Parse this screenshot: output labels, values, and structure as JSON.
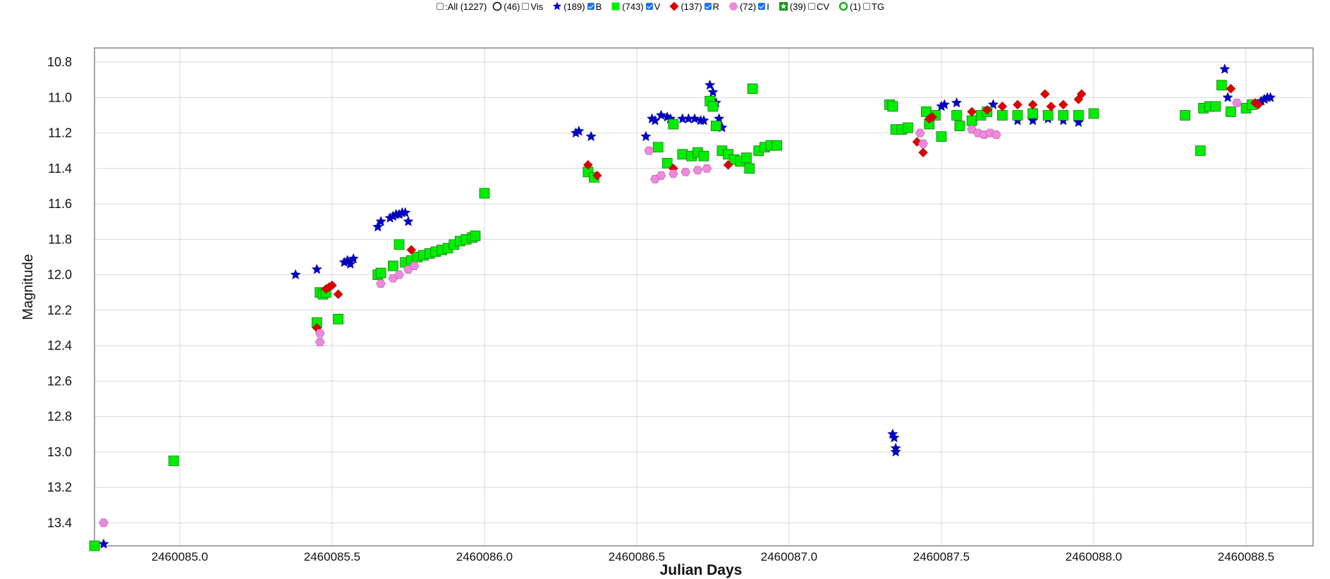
{
  "legend": {
    "all": {
      "label": ":All (1227)",
      "checked": false
    },
    "groups": [
      {
        "count": "(46)",
        "band": "Vis",
        "checked": false,
        "symbol": "open-circle",
        "color": "#000000"
      },
      {
        "count": "(189)",
        "band": "B",
        "checked": true,
        "symbol": "star",
        "color": "#0000cc"
      },
      {
        "count": "(743)",
        "band": "V",
        "checked": true,
        "symbol": "square",
        "color": "#00ee00"
      },
      {
        "count": "(137)",
        "band": "R",
        "checked": true,
        "symbol": "diamond",
        "color": "#dd0000"
      },
      {
        "count": "(72)",
        "band": "I",
        "checked": true,
        "symbol": "hexagon",
        "color": "#ee88dd"
      },
      {
        "count": "(39)",
        "band": "CV",
        "checked": false,
        "symbol": "square-asterisk",
        "color": "#119911"
      },
      {
        "count": "(1)",
        "band": "TG",
        "checked": false,
        "symbol": "open-ring",
        "color": "#22aa22"
      }
    ]
  },
  "chart_data": {
    "type": "scatter",
    "title": "",
    "xlabel": "Julian Days",
    "ylabel": "Magnitude",
    "xlim": [
      2460084.72,
      2460088.72
    ],
    "ylim": [
      13.53,
      10.72
    ],
    "y_inverted": true,
    "grid": true,
    "xticks": [
      2460085.0,
      2460085.5,
      2460086.0,
      2460086.5,
      2460087.0,
      2460087.5,
      2460088.0,
      2460088.5
    ],
    "xtick_labels": [
      "2460085.0",
      "2460085.5",
      "2460086.0",
      "2460086.5",
      "2460087.0",
      "2460087.5",
      "2460088.0",
      "2460088.5"
    ],
    "yticks": [
      10.8,
      11.0,
      11.2,
      11.4,
      11.6,
      11.8,
      12.0,
      12.2,
      12.4,
      12.6,
      12.8,
      13.0,
      13.2,
      13.4
    ],
    "ytick_labels": [
      "10.8",
      "11.0",
      "11.2",
      "11.4",
      "11.6",
      "11.8",
      "12.0",
      "12.2",
      "12.4",
      "12.6",
      "12.8",
      "13.0",
      "13.2",
      "13.4"
    ],
    "series": [
      {
        "name": "B",
        "marker": "star",
        "color": "#0000cc",
        "points": [
          [
            2460084.75,
            13.52
          ],
          [
            2460085.38,
            12.0
          ],
          [
            2460085.45,
            11.97
          ],
          [
            2460085.54,
            11.93
          ],
          [
            2460085.55,
            11.92
          ],
          [
            2460085.56,
            11.94
          ],
          [
            2460085.57,
            11.91
          ],
          [
            2460085.65,
            11.73
          ],
          [
            2460085.66,
            11.7
          ],
          [
            2460085.69,
            11.68
          ],
          [
            2460085.7,
            11.67
          ],
          [
            2460085.71,
            11.66
          ],
          [
            2460085.72,
            11.66
          ],
          [
            2460085.73,
            11.65
          ],
          [
            2460085.74,
            11.65
          ],
          [
            2460085.75,
            11.7
          ],
          [
            2460086.3,
            11.2
          ],
          [
            2460086.31,
            11.19
          ],
          [
            2460086.35,
            11.22
          ],
          [
            2460086.53,
            11.22
          ],
          [
            2460086.55,
            11.12
          ],
          [
            2460086.56,
            11.13
          ],
          [
            2460086.58,
            11.1
          ],
          [
            2460086.6,
            11.11
          ],
          [
            2460086.61,
            11.12
          ],
          [
            2460086.62,
            11.14
          ],
          [
            2460086.65,
            11.12
          ],
          [
            2460086.67,
            11.12
          ],
          [
            2460086.69,
            11.12
          ],
          [
            2460086.71,
            11.13
          ],
          [
            2460086.72,
            11.13
          ],
          [
            2460086.74,
            10.93
          ],
          [
            2460086.75,
            10.97
          ],
          [
            2460086.76,
            11.03
          ],
          [
            2460086.77,
            11.12
          ],
          [
            2460086.78,
            11.17
          ],
          [
            2460087.34,
            12.9
          ],
          [
            2460087.345,
            12.92
          ],
          [
            2460087.35,
            12.98
          ],
          [
            2460087.35,
            13.0
          ],
          [
            2460087.5,
            11.05
          ],
          [
            2460087.51,
            11.04
          ],
          [
            2460087.55,
            11.03
          ],
          [
            2460087.6,
            11.14
          ],
          [
            2460087.67,
            11.04
          ],
          [
            2460087.75,
            11.13
          ],
          [
            2460087.8,
            11.13
          ],
          [
            2460087.85,
            11.12
          ],
          [
            2460087.9,
            11.13
          ],
          [
            2460087.95,
            11.14
          ],
          [
            2460088.43,
            10.84
          ],
          [
            2460088.44,
            11.0
          ],
          [
            2460088.55,
            11.02
          ],
          [
            2460088.56,
            11.01
          ],
          [
            2460088.57,
            11.0
          ],
          [
            2460088.58,
            11.0
          ]
        ]
      },
      {
        "name": "V",
        "marker": "square",
        "color": "#00ee00",
        "points": [
          [
            2460084.72,
            13.53
          ],
          [
            2460084.98,
            13.05
          ],
          [
            2460085.45,
            12.27
          ],
          [
            2460085.46,
            12.1
          ],
          [
            2460085.47,
            12.11
          ],
          [
            2460085.48,
            12.1
          ],
          [
            2460085.52,
            12.25
          ],
          [
            2460085.65,
            12.0
          ],
          [
            2460085.66,
            11.99
          ],
          [
            2460085.7,
            11.95
          ],
          [
            2460085.72,
            11.83
          ],
          [
            2460085.74,
            11.93
          ],
          [
            2460085.76,
            11.92
          ],
          [
            2460085.78,
            11.9
          ],
          [
            2460085.8,
            11.89
          ],
          [
            2460085.82,
            11.88
          ],
          [
            2460085.84,
            11.87
          ],
          [
            2460085.86,
            11.86
          ],
          [
            2460085.88,
            11.85
          ],
          [
            2460085.9,
            11.83
          ],
          [
            2460085.92,
            11.81
          ],
          [
            2460085.94,
            11.8
          ],
          [
            2460085.96,
            11.79
          ],
          [
            2460085.97,
            11.78
          ],
          [
            2460086.0,
            11.54
          ],
          [
            2460086.34,
            11.42
          ],
          [
            2460086.36,
            11.45
          ],
          [
            2460086.57,
            11.28
          ],
          [
            2460086.6,
            11.37
          ],
          [
            2460086.62,
            11.15
          ],
          [
            2460086.65,
            11.32
          ],
          [
            2460086.68,
            11.33
          ],
          [
            2460086.7,
            11.31
          ],
          [
            2460086.72,
            11.33
          ],
          [
            2460086.74,
            11.02
          ],
          [
            2460086.75,
            11.05
          ],
          [
            2460086.76,
            11.16
          ],
          [
            2460086.78,
            11.3
          ],
          [
            2460086.8,
            11.32
          ],
          [
            2460086.82,
            11.35
          ],
          [
            2460086.84,
            11.36
          ],
          [
            2460086.86,
            11.34
          ],
          [
            2460086.87,
            11.4
          ],
          [
            2460086.88,
            10.95
          ],
          [
            2460086.9,
            11.3
          ],
          [
            2460086.92,
            11.28
          ],
          [
            2460086.94,
            11.27
          ],
          [
            2460086.96,
            11.27
          ],
          [
            2460087.33,
            11.04
          ],
          [
            2460087.34,
            11.05
          ],
          [
            2460087.35,
            11.18
          ],
          [
            2460087.37,
            11.18
          ],
          [
            2460087.39,
            11.17
          ],
          [
            2460087.45,
            11.08
          ],
          [
            2460087.46,
            11.15
          ],
          [
            2460087.48,
            11.1
          ],
          [
            2460087.5,
            11.22
          ],
          [
            2460087.55,
            11.1
          ],
          [
            2460087.56,
            11.16
          ],
          [
            2460087.6,
            11.13
          ],
          [
            2460087.63,
            11.1
          ],
          [
            2460087.65,
            11.08
          ],
          [
            2460087.7,
            11.1
          ],
          [
            2460087.75,
            11.1
          ],
          [
            2460087.8,
            11.09
          ],
          [
            2460087.85,
            11.1
          ],
          [
            2460087.9,
            11.1
          ],
          [
            2460087.95,
            11.1
          ],
          [
            2460088.0,
            11.09
          ],
          [
            2460088.3,
            11.1
          ],
          [
            2460088.35,
            11.3
          ],
          [
            2460088.36,
            11.06
          ],
          [
            2460088.38,
            11.05
          ],
          [
            2460088.4,
            11.05
          ],
          [
            2460088.42,
            10.93
          ],
          [
            2460088.45,
            11.08
          ],
          [
            2460088.5,
            11.06
          ],
          [
            2460088.52,
            11.04
          ]
        ]
      },
      {
        "name": "R",
        "marker": "diamond",
        "color": "#dd0000",
        "points": [
          [
            2460085.45,
            12.3
          ],
          [
            2460085.48,
            12.08
          ],
          [
            2460085.49,
            12.07
          ],
          [
            2460085.5,
            12.06
          ],
          [
            2460085.52,
            12.11
          ],
          [
            2460085.76,
            11.86
          ],
          [
            2460086.34,
            11.38
          ],
          [
            2460086.37,
            11.44
          ],
          [
            2460086.62,
            11.4
          ],
          [
            2460086.8,
            11.38
          ],
          [
            2460087.42,
            11.25
          ],
          [
            2460087.44,
            11.31
          ],
          [
            2460087.46,
            11.12
          ],
          [
            2460087.47,
            11.11
          ],
          [
            2460087.6,
            11.08
          ],
          [
            2460087.65,
            11.07
          ],
          [
            2460087.7,
            11.05
          ],
          [
            2460087.75,
            11.04
          ],
          [
            2460087.8,
            11.04
          ],
          [
            2460087.84,
            10.98
          ],
          [
            2460087.86,
            11.05
          ],
          [
            2460087.9,
            11.04
          ],
          [
            2460087.95,
            11.01
          ],
          [
            2460087.96,
            10.98
          ],
          [
            2460088.45,
            10.95
          ],
          [
            2460088.53,
            11.03
          ],
          [
            2460088.54,
            11.04
          ]
        ]
      },
      {
        "name": "I",
        "marker": "hexagon",
        "color": "#ee88dd",
        "points": [
          [
            2460084.75,
            13.4
          ],
          [
            2460085.46,
            12.33
          ],
          [
            2460085.46,
            12.38
          ],
          [
            2460085.66,
            12.05
          ],
          [
            2460085.7,
            12.02
          ],
          [
            2460085.72,
            12.0
          ],
          [
            2460085.75,
            11.97
          ],
          [
            2460085.77,
            11.95
          ],
          [
            2460086.54,
            11.3
          ],
          [
            2460086.56,
            11.46
          ],
          [
            2460086.58,
            11.44
          ],
          [
            2460086.62,
            11.43
          ],
          [
            2460086.66,
            11.42
          ],
          [
            2460086.7,
            11.41
          ],
          [
            2460086.73,
            11.4
          ],
          [
            2460087.43,
            11.2
          ],
          [
            2460087.44,
            11.26
          ],
          [
            2460087.6,
            11.18
          ],
          [
            2460087.62,
            11.2
          ],
          [
            2460087.64,
            11.21
          ],
          [
            2460087.66,
            11.2
          ],
          [
            2460087.68,
            11.21
          ],
          [
            2460088.47,
            11.03
          ]
        ]
      }
    ]
  }
}
